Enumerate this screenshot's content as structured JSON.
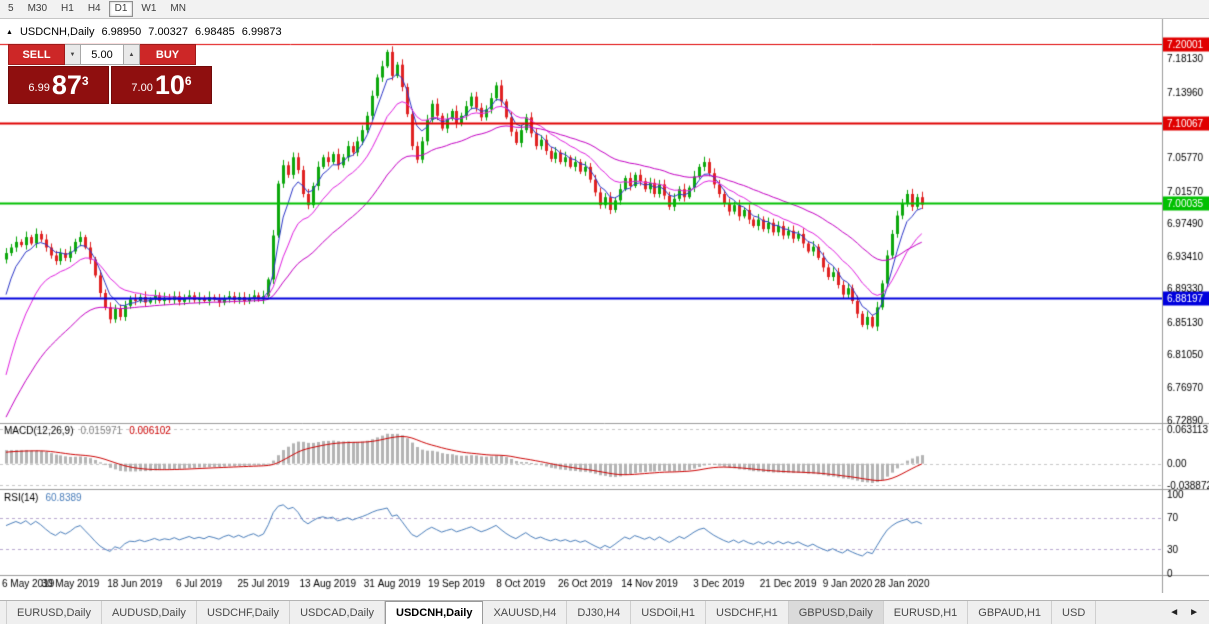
{
  "toolbar": {
    "items": [
      {
        "label": "5",
        "active": false
      },
      {
        "label": "M30",
        "active": false
      },
      {
        "label": "H1",
        "active": false
      },
      {
        "label": "H4",
        "active": false
      },
      {
        "label": "D1",
        "active": true
      },
      {
        "label": "W1",
        "active": false
      },
      {
        "label": "MN",
        "active": false
      }
    ]
  },
  "chart_header": {
    "collapse_icon": "▲",
    "symbol": "USDCNH,Daily",
    "open": "6.98950",
    "high": "7.00327",
    "low": "6.98485",
    "close": "6.99873"
  },
  "trade_panel": {
    "sell_label": "SELL",
    "buy_label": "BUY",
    "volume": "5.00",
    "volume_down_icon": "▼",
    "volume_up_icon": "▲",
    "bid": {
      "small": "6.99",
      "big": "87",
      "sup": "3"
    },
    "ask": {
      "small": "7.00",
      "big": "10",
      "sup": "6"
    }
  },
  "tabs": {
    "scroll_left": "◄",
    "scroll_right": "►",
    "items": [
      {
        "label": "EURUSD,Daily",
        "active": false
      },
      {
        "label": "AUDUSD,Daily",
        "active": false
      },
      {
        "label": "USDCHF,Daily",
        "active": false
      },
      {
        "label": "USDCAD,Daily",
        "active": false
      },
      {
        "label": "USDCNH,Daily",
        "active": true
      },
      {
        "label": "XAUUSD,H4",
        "active": false
      },
      {
        "label": "DJ30,H4",
        "active": false
      },
      {
        "label": "USDOil,H1",
        "active": false
      },
      {
        "label": "USDCHF,H1",
        "active": false
      },
      {
        "label": "GBPUSD,Daily",
        "active": false,
        "shaded": true
      },
      {
        "label": "EURUSD,H1",
        "active": false
      },
      {
        "label": "GBPAUD,H1",
        "active": false
      },
      {
        "label": "USD",
        "active": false
      }
    ]
  },
  "chart_data": {
    "type": "candlestick",
    "symbol": "USDCNH",
    "timeframe": "Daily",
    "price_axis": {
      "min": 6.7289,
      "max": 7.2137,
      "ticks": [
        "7.18130",
        "7.13960",
        "7.05770",
        "7.01570",
        "6.97490",
        "6.93410",
        "6.89330",
        "6.85130",
        "6.81050",
        "6.76970",
        "6.72890"
      ]
    },
    "hlines": [
      {
        "price": "7.20001",
        "value": 7.20001,
        "color": "#e00000",
        "width": 1
      },
      {
        "price": "7.10067",
        "value": 7.10067,
        "color": "#e00000",
        "width": 2
      },
      {
        "price": "7.00035",
        "value": 7.00035,
        "color": "#00c000",
        "width": 2
      },
      {
        "price": "6.88197",
        "value": 6.88197,
        "color": "#0000dd",
        "width": 2
      }
    ],
    "first_open": 6.93,
    "closes": [
      6.938,
      6.945,
      6.952,
      6.948,
      6.958,
      6.95,
      6.962,
      6.955,
      6.945,
      6.935,
      6.928,
      6.938,
      6.932,
      6.94,
      6.952,
      6.958,
      6.945,
      6.93,
      6.91,
      6.888,
      6.87,
      6.855,
      6.868,
      6.858,
      6.872,
      6.88,
      6.878,
      6.883,
      6.876,
      6.88,
      6.885,
      6.878,
      6.882,
      6.879,
      6.884,
      6.877,
      6.881,
      6.885,
      6.879,
      6.882,
      6.878,
      6.883,
      6.88,
      6.876,
      6.881,
      6.884,
      6.879,
      6.883,
      6.878,
      6.882,
      6.885,
      6.88,
      6.884,
      6.905,
      6.96,
      7.025,
      7.048,
      7.036,
      7.058,
      7.042,
      7.012,
      6.998,
      7.022,
      7.046,
      7.058,
      7.052,
      7.062,
      7.048,
      7.058,
      7.072,
      7.064,
      7.078,
      7.092,
      7.11,
      7.135,
      7.158,
      7.172,
      7.19,
      7.16,
      7.174,
      7.146,
      7.112,
      7.072,
      7.055,
      7.078,
      7.105,
      7.125,
      7.11,
      7.094,
      7.106,
      7.116,
      7.1,
      7.11,
      7.122,
      7.134,
      7.12,
      7.108,
      7.118,
      7.132,
      7.148,
      7.128,
      7.108,
      7.09,
      7.076,
      7.092,
      7.108,
      7.088,
      7.072,
      7.08,
      7.066,
      7.056,
      7.064,
      7.052,
      7.058,
      7.046,
      7.052,
      7.04,
      7.046,
      7.03,
      7.014,
      6.998,
      7.008,
      6.992,
      7.004,
      7.018,
      7.032,
      7.022,
      7.036,
      7.028,
      7.018,
      7.026,
      7.012,
      7.024,
      7.01,
      6.996,
      7.006,
      7.018,
      7.008,
      7.02,
      7.034,
      7.046,
      7.052,
      7.038,
      7.024,
      7.012,
      7.0,
      6.99,
      6.998,
      6.984,
      6.992,
      6.98,
      6.972,
      6.98,
      6.968,
      6.976,
      6.964,
      6.972,
      6.96,
      6.966,
      6.956,
      6.962,
      6.95,
      6.94,
      6.946,
      6.932,
      6.92,
      6.908,
      6.914,
      6.898,
      6.886,
      6.894,
      6.878,
      6.862,
      6.848,
      6.858,
      6.846,
      6.87,
      6.9,
      6.935,
      6.962,
      6.985,
      7.0,
      7.012,
      6.996,
      7.008,
      6.9987
    ],
    "ma": [
      {
        "name": "fast-ma",
        "period": 5,
        "seed": 6.86,
        "color": "#2b35c8"
      },
      {
        "name": "mid-ma",
        "period": 13,
        "seed": 6.76,
        "color": "#e020e0"
      },
      {
        "name": "slow-ma",
        "period": 34,
        "seed": 6.72,
        "color": "#c400c4"
      }
    ],
    "macd": {
      "label": "MACD(12,26,9)",
      "value_main": "0.015971",
      "value_signal": "0.006102",
      "fast": 12,
      "slow": 26,
      "signal": 9,
      "seed_fast": 6.92,
      "seed_slow": 6.895,
      "seed_signal": 0.02,
      "range_max": 0.063113,
      "range_min": -0.038872,
      "ticks": [
        {
          "v": 0.063113,
          "t": "0.063113"
        },
        {
          "v": 0,
          "t": "0.00"
        },
        {
          "v": -0.038872,
          "t": "-0.038872"
        }
      ],
      "hist_color": "#b4b4b4",
      "signal_color": "#cc0000"
    },
    "rsi": {
      "label": "RSI(14)",
      "value": "60.8389",
      "period": 14,
      "seed_gain": 0.0045,
      "seed_loss": 0.003,
      "levels": [
        70,
        30
      ],
      "ticks": [
        {
          "v": 100,
          "t": "100"
        },
        {
          "v": 70,
          "t": "70"
        },
        {
          "v": 30,
          "t": "30"
        },
        {
          "v": 0,
          "t": "0"
        }
      ],
      "color": "#4a7ebb",
      "level_color": "#b9a9d0"
    },
    "date_labels": [
      {
        "i": 0,
        "t": "6 May 2019"
      },
      {
        "i": 13,
        "t": "30 May 2019"
      },
      {
        "i": 26,
        "t": "18 Jun 2019"
      },
      {
        "i": 39,
        "t": "6 Jul 2019"
      },
      {
        "i": 52,
        "t": "25 Jul 2019"
      },
      {
        "i": 65,
        "t": "13 Aug 2019"
      },
      {
        "i": 78,
        "t": "31 Aug 2019"
      },
      {
        "i": 91,
        "t": "19 Sep 2019"
      },
      {
        "i": 104,
        "t": "8 Oct 2019"
      },
      {
        "i": 117,
        "t": "26 Oct 2019"
      },
      {
        "i": 130,
        "t": "14 Nov 2019"
      },
      {
        "i": 144,
        "t": "3 Dec 2019"
      },
      {
        "i": 158,
        "t": "21 Dec 2019"
      },
      {
        "i": 170,
        "t": "9 Jan 2020"
      },
      {
        "i": 181,
        "t": "28 Jan 2020"
      }
    ],
    "colors": {
      "up": "#0ca80c",
      "down": "#e02222",
      "separator": "#9a9a9a",
      "axis_text": "#000000",
      "grid_dash": "#c8c8c8"
    }
  }
}
